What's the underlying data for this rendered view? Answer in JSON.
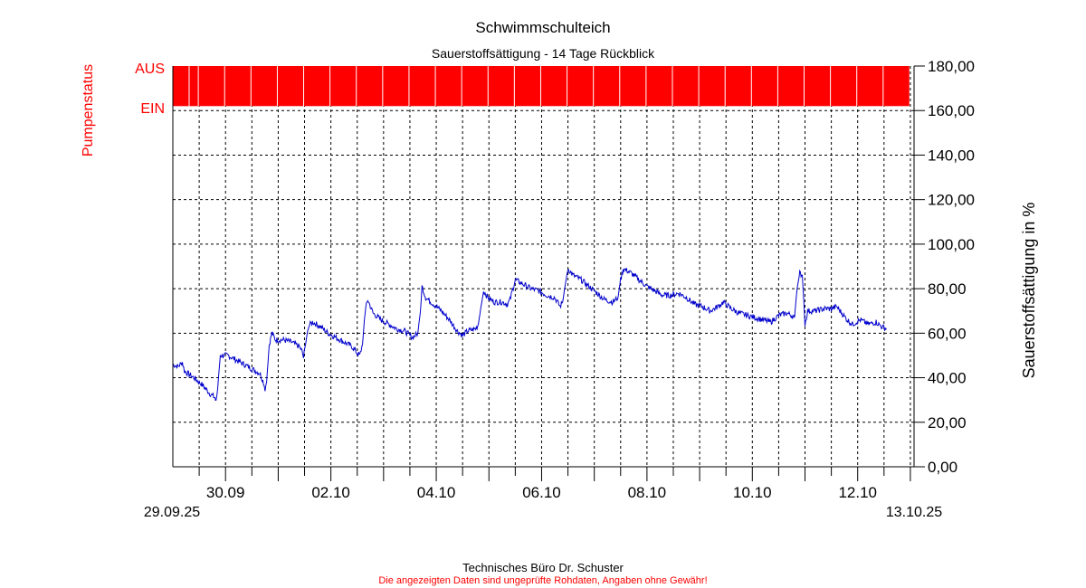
{
  "chart_data": {
    "type": "line",
    "title": "Schwimmschulteich",
    "subtitle": "Sauerstoffsättigung - 14 Tage Rückblick",
    "ylabel_right": "Sauerstoffsättigung in %",
    "pump_label": "Pumpenstatus",
    "pump_states": [
      "AUS",
      "EIN"
    ],
    "pump_status": "AUS",
    "ylim": [
      0,
      180
    ],
    "yticks": [
      "0,00",
      "20,00",
      "40,00",
      "60,00",
      "80,00",
      "100,00",
      "120,00",
      "140,00",
      "160,00",
      "180,00"
    ],
    "xlim_days": [
      0,
      14.07
    ],
    "x_start_label": "29.09.25",
    "x_end_label": "13.10.25",
    "x_tick_labels": [
      {
        "day": 1,
        "label": "30.09"
      },
      {
        "day": 3,
        "label": "02.10"
      },
      {
        "day": 5,
        "label": "04.10"
      },
      {
        "day": 7,
        "label": "06.10"
      },
      {
        "day": 9,
        "label": "08.10"
      },
      {
        "day": 11,
        "label": "10.10"
      },
      {
        "day": 13,
        "label": "12.10"
      }
    ],
    "grid": true,
    "line_color": "#0000cc",
    "pump_color": "#ff0000",
    "series": [
      {
        "values": [
          [
            0.0,
            46
          ],
          [
            0.1,
            45
          ],
          [
            0.18,
            47
          ],
          [
            0.22,
            43
          ],
          [
            0.4,
            40
          ],
          [
            0.55,
            37
          ],
          [
            0.7,
            33
          ],
          [
            0.8,
            31
          ],
          [
            0.82,
            29
          ],
          [
            0.85,
            35
          ],
          [
            0.9,
            50
          ],
          [
            1.05,
            50
          ],
          [
            1.2,
            48
          ],
          [
            1.35,
            46
          ],
          [
            1.5,
            44
          ],
          [
            1.65,
            42
          ],
          [
            1.72,
            38
          ],
          [
            1.75,
            35
          ],
          [
            1.78,
            38
          ],
          [
            1.83,
            55
          ],
          [
            1.88,
            60
          ],
          [
            1.95,
            57
          ],
          [
            2.1,
            57
          ],
          [
            2.25,
            56
          ],
          [
            2.4,
            54
          ],
          [
            2.45,
            52
          ],
          [
            2.48,
            49
          ],
          [
            2.52,
            55
          ],
          [
            2.57,
            63
          ],
          [
            2.65,
            65
          ],
          [
            2.8,
            63
          ],
          [
            2.95,
            60
          ],
          [
            3.1,
            58
          ],
          [
            3.25,
            56
          ],
          [
            3.4,
            54
          ],
          [
            3.5,
            51
          ],
          [
            3.55,
            50
          ],
          [
            3.6,
            55
          ],
          [
            3.65,
            70
          ],
          [
            3.7,
            75
          ],
          [
            3.8,
            69
          ],
          [
            3.95,
            66
          ],
          [
            4.1,
            64
          ],
          [
            4.25,
            62
          ],
          [
            4.4,
            61
          ],
          [
            4.5,
            59
          ],
          [
            4.55,
            58
          ],
          [
            4.65,
            60
          ],
          [
            4.7,
            70
          ],
          [
            4.73,
            81
          ],
          [
            4.8,
            76
          ],
          [
            4.95,
            73
          ],
          [
            5.1,
            70
          ],
          [
            5.25,
            66
          ],
          [
            5.4,
            61
          ],
          [
            5.5,
            59
          ],
          [
            5.6,
            61
          ],
          [
            5.75,
            62
          ],
          [
            5.8,
            64
          ],
          [
            5.85,
            72
          ],
          [
            5.9,
            79
          ],
          [
            5.98,
            76
          ],
          [
            6.1,
            74
          ],
          [
            6.25,
            74
          ],
          [
            6.35,
            73
          ],
          [
            6.4,
            75
          ],
          [
            6.5,
            84
          ],
          [
            6.65,
            82
          ],
          [
            6.8,
            80
          ],
          [
            6.95,
            79
          ],
          [
            7.1,
            77
          ],
          [
            7.25,
            76
          ],
          [
            7.35,
            72
          ],
          [
            7.4,
            74
          ],
          [
            7.45,
            82
          ],
          [
            7.5,
            89
          ],
          [
            7.6,
            86
          ],
          [
            7.75,
            84
          ],
          [
            7.9,
            81
          ],
          [
            8.05,
            78
          ],
          [
            8.2,
            75
          ],
          [
            8.35,
            74
          ],
          [
            8.45,
            76
          ],
          [
            8.5,
            84
          ],
          [
            8.55,
            89
          ],
          [
            8.7,
            87
          ],
          [
            8.85,
            84
          ],
          [
            9.0,
            81
          ],
          [
            9.15,
            79
          ],
          [
            9.3,
            77
          ],
          [
            9.45,
            77
          ],
          [
            9.6,
            78
          ],
          [
            9.75,
            76
          ],
          [
            9.9,
            73
          ],
          [
            10.05,
            72
          ],
          [
            10.2,
            70
          ],
          [
            10.35,
            72
          ],
          [
            10.45,
            74
          ],
          [
            10.6,
            71
          ],
          [
            10.75,
            69
          ],
          [
            10.9,
            68
          ],
          [
            11.05,
            67
          ],
          [
            11.2,
            66
          ],
          [
            11.35,
            65
          ],
          [
            11.5,
            68
          ],
          [
            11.65,
            69
          ],
          [
            11.75,
            68
          ],
          [
            11.8,
            67
          ],
          [
            11.85,
            80
          ],
          [
            11.9,
            87
          ],
          [
            11.95,
            86
          ],
          [
            12.0,
            64
          ],
          [
            12.05,
            70
          ],
          [
            12.2,
            70
          ],
          [
            12.35,
            71
          ],
          [
            12.5,
            71
          ],
          [
            12.6,
            72
          ],
          [
            12.7,
            69
          ],
          [
            12.8,
            66
          ],
          [
            12.9,
            64
          ],
          [
            13.05,
            66
          ],
          [
            13.2,
            64
          ],
          [
            13.35,
            65
          ],
          [
            13.45,
            63
          ],
          [
            13.55,
            62
          ]
        ]
      }
    ]
  },
  "footer": {
    "credit": "Technisches Büro Dr. Schuster",
    "disclaimer": "Die angezeigten Daten sind ungeprüfte Rohdaten, Angaben ohne Gewähr!"
  }
}
